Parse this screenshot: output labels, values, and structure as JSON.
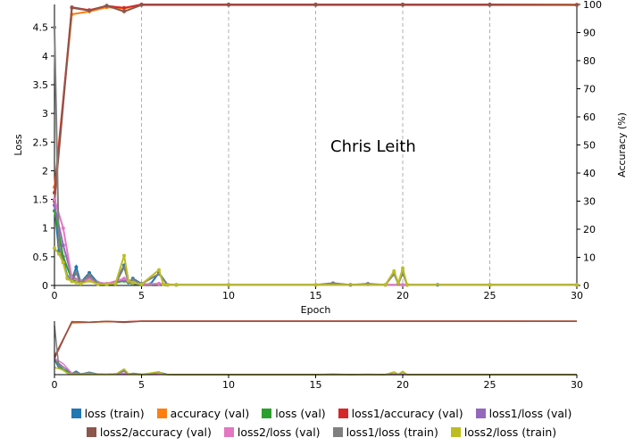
{
  "chart_data": {
    "type": "line",
    "annotation": "Chris Leith",
    "xlabel": "Epoch",
    "ylabel_left": "Loss",
    "ylabel_right": "Accuracy (%)",
    "xlim": [
      0,
      30
    ],
    "ylim_left": [
      0,
      4.9
    ],
    "ylim_right": [
      0,
      100
    ],
    "x_ticks": [
      "0",
      "5",
      "10",
      "15",
      "20",
      "25",
      "30"
    ],
    "y_ticks_left": [
      "0",
      "0.5",
      "1",
      "1.5",
      "2",
      "2.5",
      "3",
      "3.5",
      "4",
      "4.5"
    ],
    "y_ticks_right": [
      "0",
      "10",
      "20",
      "30",
      "40",
      "50",
      "60",
      "70",
      "80",
      "90",
      "100"
    ],
    "grid": "vertical dashed at x ticks",
    "series": [
      {
        "name": "loss (train)",
        "axis": "left",
        "color": "#1f77b4",
        "points": [
          [
            0,
            1.4
          ],
          [
            0.25,
            0.6
          ],
          [
            0.5,
            0.45
          ],
          [
            0.75,
            0.15
          ],
          [
            1,
            0.1
          ],
          [
            1.25,
            0.32
          ],
          [
            1.5,
            0.05
          ],
          [
            2,
            0.22
          ],
          [
            2.5,
            0.04
          ],
          [
            3,
            0.02
          ],
          [
            3.5,
            0.03
          ],
          [
            4,
            0.35
          ],
          [
            4.25,
            0.05
          ],
          [
            4.5,
            0.12
          ],
          [
            5,
            0.03
          ],
          [
            5.5,
            0.02
          ],
          [
            6,
            0.22
          ],
          [
            6.5,
            0.01
          ],
          [
            7,
            0.01
          ],
          [
            10,
            0.01
          ],
          [
            15,
            0.01
          ],
          [
            16,
            0.03
          ],
          [
            17,
            0.01
          ],
          [
            18,
            0.02
          ],
          [
            19,
            0.01
          ],
          [
            19.5,
            0.22
          ],
          [
            19.75,
            0.03
          ],
          [
            20,
            0.25
          ],
          [
            20.25,
            0.01
          ],
          [
            22,
            0.01
          ],
          [
            25,
            0.01
          ],
          [
            30,
            0.01
          ]
        ]
      },
      {
        "name": "accuracy (val)",
        "axis": "right",
        "color": "#ff7f0e",
        "points": [
          [
            0,
            35
          ],
          [
            1,
            96.5
          ],
          [
            2,
            97.5
          ],
          [
            3,
            99
          ],
          [
            4,
            98.5
          ],
          [
            5,
            100
          ],
          [
            10,
            100
          ],
          [
            15,
            100
          ],
          [
            20,
            100
          ],
          [
            25,
            100
          ],
          [
            30,
            100
          ]
        ]
      },
      {
        "name": "loss (val)",
        "axis": "left",
        "color": "#2ca02c",
        "points": [
          [
            0,
            1.3
          ],
          [
            0.5,
            0.5
          ],
          [
            1,
            0.1
          ],
          [
            1.5,
            0.05
          ],
          [
            2,
            0.1
          ],
          [
            2.5,
            0.03
          ],
          [
            3,
            0.02
          ],
          [
            4,
            0.08
          ],
          [
            4.5,
            0.03
          ],
          [
            5,
            0.01
          ],
          [
            6,
            0.02
          ],
          [
            7,
            0.01
          ],
          [
            10,
            0.01
          ],
          [
            15,
            0.01
          ],
          [
            20,
            0.01
          ],
          [
            25,
            0.01
          ],
          [
            30,
            0.01
          ]
        ]
      },
      {
        "name": "loss1/accuracy (val)",
        "axis": "right",
        "color": "#d62728",
        "points": [
          [
            0,
            33
          ],
          [
            1,
            99
          ],
          [
            2,
            98
          ],
          [
            3,
            99.5
          ],
          [
            4,
            98.8
          ],
          [
            5,
            100
          ],
          [
            10,
            100
          ],
          [
            15,
            100
          ],
          [
            20,
            100
          ],
          [
            25,
            100
          ],
          [
            30,
            99.8
          ]
        ]
      },
      {
        "name": "loss1/loss (val)",
        "axis": "left",
        "color": "#9467bd",
        "points": [
          [
            0,
            1.4
          ],
          [
            0.5,
            0.7
          ],
          [
            1,
            0.15
          ],
          [
            1.5,
            0.08
          ],
          [
            2,
            0.12
          ],
          [
            2.5,
            0.05
          ],
          [
            3,
            0.03
          ],
          [
            4,
            0.1
          ],
          [
            4.5,
            0.04
          ],
          [
            5,
            0.02
          ],
          [
            6,
            0.03
          ],
          [
            7,
            0.01
          ],
          [
            10,
            0.01
          ],
          [
            15,
            0.01
          ],
          [
            20,
            0.01
          ],
          [
            25,
            0.01
          ],
          [
            30,
            0.01
          ]
        ]
      },
      {
        "name": "loss2/accuracy (val)",
        "axis": "right",
        "color": "#8c564b",
        "points": [
          [
            0,
            30
          ],
          [
            1,
            98.8
          ],
          [
            2,
            97.8
          ],
          [
            3,
            99.6
          ],
          [
            4,
            97.5
          ],
          [
            5,
            99.8
          ],
          [
            10,
            99.8
          ],
          [
            15,
            99.8
          ],
          [
            20,
            99.8
          ],
          [
            25,
            99.8
          ],
          [
            30,
            99.8
          ]
        ]
      },
      {
        "name": "loss2/loss (val)",
        "axis": "left",
        "color": "#e377c2",
        "points": [
          [
            0,
            1.5
          ],
          [
            0.5,
            1.0
          ],
          [
            1,
            0.12
          ],
          [
            1.5,
            0.08
          ],
          [
            2,
            0.1
          ],
          [
            2.5,
            0.05
          ],
          [
            3,
            0.03
          ],
          [
            4,
            0.12
          ],
          [
            4.5,
            0.05
          ],
          [
            5,
            0.02
          ],
          [
            6,
            0.03
          ],
          [
            7,
            0.01
          ],
          [
            10,
            0.01
          ],
          [
            15,
            0.01
          ],
          [
            20,
            0.01
          ],
          [
            25,
            0.01
          ],
          [
            30,
            0.01
          ]
        ]
      },
      {
        "name": "loss1/loss (train)",
        "axis": "left",
        "color": "#7f7f7f",
        "points": [
          [
            0,
            4.5
          ],
          [
            0.25,
            0.7
          ],
          [
            0.5,
            0.4
          ],
          [
            0.75,
            0.12
          ],
          [
            1,
            0.08
          ],
          [
            1.25,
            0.22
          ],
          [
            1.5,
            0.04
          ],
          [
            2,
            0.18
          ],
          [
            2.5,
            0.03
          ],
          [
            3,
            0.02
          ],
          [
            3.5,
            0.03
          ],
          [
            4,
            0.32
          ],
          [
            4.25,
            0.06
          ],
          [
            4.5,
            0.1
          ],
          [
            5,
            0.03
          ],
          [
            6,
            0.2
          ],
          [
            6.5,
            0.01
          ],
          [
            7,
            0.01
          ],
          [
            10,
            0.01
          ],
          [
            15,
            0.01
          ],
          [
            16,
            0.04
          ],
          [
            17,
            0.01
          ],
          [
            18,
            0.03
          ],
          [
            19,
            0.01
          ],
          [
            19.5,
            0.2
          ],
          [
            19.75,
            0.03
          ],
          [
            20,
            0.22
          ],
          [
            20.25,
            0.01
          ],
          [
            25,
            0.01
          ],
          [
            30,
            0.01
          ]
        ]
      },
      {
        "name": "loss2/loss (train)",
        "axis": "left",
        "color": "#bcbd22",
        "points": [
          [
            0,
            0.65
          ],
          [
            0.25,
            0.55
          ],
          [
            0.5,
            0.4
          ],
          [
            0.75,
            0.12
          ],
          [
            1,
            0.07
          ],
          [
            1.25,
            0.05
          ],
          [
            1.5,
            0.03
          ],
          [
            2,
            0.08
          ],
          [
            2.5,
            0.02
          ],
          [
            3,
            0.02
          ],
          [
            3.5,
            0.03
          ],
          [
            4,
            0.52
          ],
          [
            4.25,
            0.08
          ],
          [
            4.5,
            0.05
          ],
          [
            5,
            0.02
          ],
          [
            6,
            0.27
          ],
          [
            6.25,
            0.02
          ],
          [
            6.5,
            0.01
          ],
          [
            7,
            0.01
          ],
          [
            10,
            0.01
          ],
          [
            15,
            0.01
          ],
          [
            19,
            0.01
          ],
          [
            19.5,
            0.25
          ],
          [
            19.75,
            0.04
          ],
          [
            20,
            0.3
          ],
          [
            20.25,
            0.01
          ],
          [
            25,
            0.01
          ],
          [
            30,
            0.01
          ]
        ]
      }
    ]
  }
}
